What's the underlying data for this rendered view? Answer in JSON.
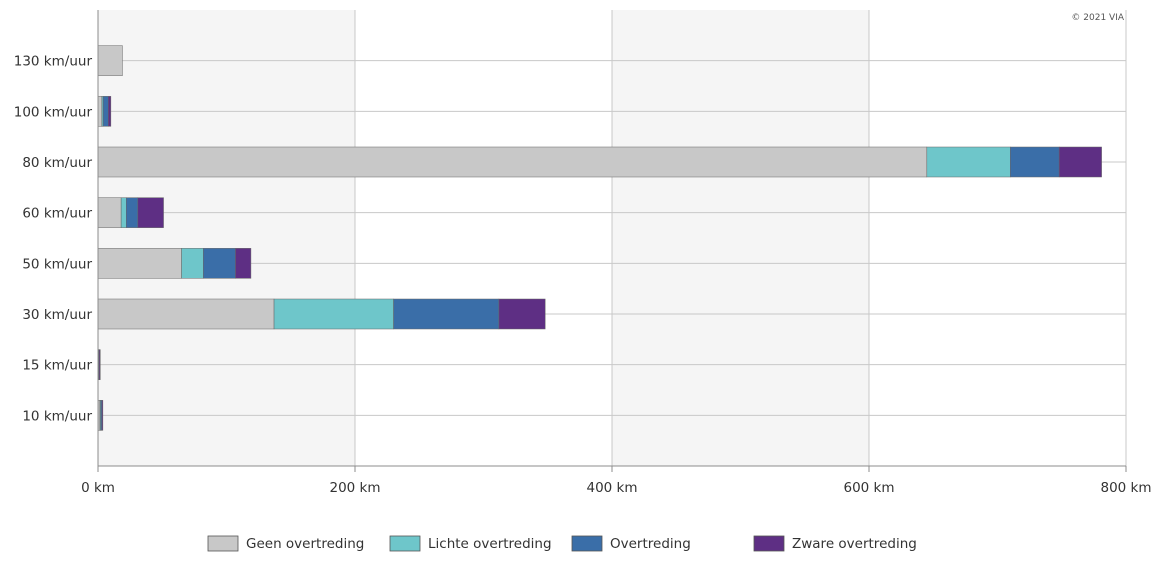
{
  "copyright": "© 2021 VIA",
  "colors": {
    "band": "#f5f5f5",
    "grid": "#c8c8c8",
    "axis": "#8c8c8c",
    "text": "#333333"
  },
  "chart_data": {
    "type": "bar",
    "orientation": "horizontal",
    "stacked": true,
    "title": "",
    "xlabel": "",
    "ylabel": "",
    "xlim": [
      0,
      800
    ],
    "x_ticks": [
      0,
      200,
      400,
      600,
      800
    ],
    "x_tick_labels": [
      "0 km",
      "200 km",
      "400 km",
      "600 km",
      "800 km"
    ],
    "alternating_bands": true,
    "grid": true,
    "legend_position": "bottom",
    "categories": [
      "130 km/uur",
      "100 km/uur",
      "80 km/uur",
      "60 km/uur",
      "50 km/uur",
      "30 km/uur",
      "15 km/uur",
      "10 km/uur"
    ],
    "series": [
      {
        "name": "Geen overtreding",
        "color": "#c8c8c8",
        "values": [
          19,
          3,
          645,
          18,
          65,
          137,
          0.5,
          1.5
        ]
      },
      {
        "name": "Lichte overtreding",
        "color": "#6ec6ca",
        "values": [
          0,
          1,
          65,
          4,
          17,
          93,
          0,
          0.5
        ]
      },
      {
        "name": "Overtreding",
        "color": "#3a6ea8",
        "values": [
          0,
          4,
          38,
          9,
          25,
          82,
          0.5,
          1
        ]
      },
      {
        "name": "Zware overtreding",
        "color": "#5e2f84",
        "values": [
          0,
          2,
          33,
          20,
          12,
          36,
          0.5,
          0.5
        ]
      }
    ]
  }
}
